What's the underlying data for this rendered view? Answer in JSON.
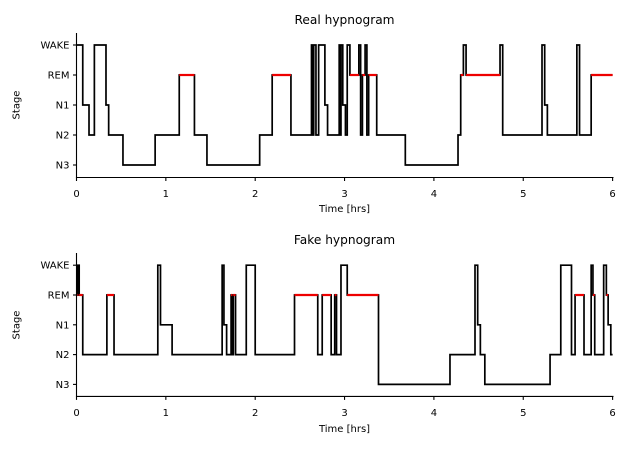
{
  "colors": {
    "line": "#000000",
    "rem_highlight": "#ee0000",
    "text": "#000000",
    "background": "#ffffff"
  },
  "chart_data": [
    {
      "type": "line",
      "subtype": "hypnogram-step",
      "title": "Real hypnogram",
      "xlabel": "Time [hrs]",
      "ylabel": "Stage",
      "stages": [
        "WAKE",
        "REM",
        "N1",
        "N2",
        "N3"
      ],
      "x_ticks": [
        "0",
        "1",
        "2",
        "3",
        "4",
        "5",
        "6"
      ],
      "xlim": [
        0,
        6
      ],
      "grid": false,
      "legend": "none",
      "rem_segments_highlighted_red": true,
      "segments": [
        [
          0.0,
          0.07,
          "WAKE"
        ],
        [
          0.07,
          0.14,
          "N1"
        ],
        [
          0.14,
          0.2,
          "N2"
        ],
        [
          0.2,
          0.33,
          "WAKE"
        ],
        [
          0.33,
          0.36,
          "N1"
        ],
        [
          0.36,
          0.52,
          "N2"
        ],
        [
          0.52,
          0.88,
          "N3"
        ],
        [
          0.88,
          1.15,
          "N2"
        ],
        [
          1.15,
          1.32,
          "REM"
        ],
        [
          1.32,
          1.46,
          "N2"
        ],
        [
          1.46,
          2.05,
          "N3"
        ],
        [
          2.05,
          2.19,
          "N2"
        ],
        [
          2.19,
          2.4,
          "REM"
        ],
        [
          2.4,
          2.63,
          "N2"
        ],
        [
          2.63,
          2.645,
          "WAKE"
        ],
        [
          2.645,
          2.655,
          "N2"
        ],
        [
          2.655,
          2.68,
          "WAKE"
        ],
        [
          2.68,
          2.71,
          "N2"
        ],
        [
          2.71,
          2.78,
          "WAKE"
        ],
        [
          2.78,
          2.81,
          "N1"
        ],
        [
          2.81,
          2.94,
          "N2"
        ],
        [
          2.94,
          2.95,
          "WAKE"
        ],
        [
          2.95,
          2.96,
          "N2"
        ],
        [
          2.96,
          2.98,
          "WAKE"
        ],
        [
          2.98,
          3.01,
          "N1"
        ],
        [
          3.01,
          3.03,
          "N2"
        ],
        [
          3.03,
          3.06,
          "WAKE"
        ],
        [
          3.06,
          3.16,
          "REM"
        ],
        [
          3.16,
          3.18,
          "WAKE"
        ],
        [
          3.18,
          3.2,
          "N2"
        ],
        [
          3.2,
          3.23,
          "REM"
        ],
        [
          3.23,
          3.25,
          "WAKE"
        ],
        [
          3.25,
          3.27,
          "N2"
        ],
        [
          3.27,
          3.36,
          "REM"
        ],
        [
          3.36,
          3.68,
          "N2"
        ],
        [
          3.68,
          4.27,
          "N3"
        ],
        [
          4.27,
          4.3,
          "N2"
        ],
        [
          4.3,
          4.33,
          "REM"
        ],
        [
          4.33,
          4.36,
          "WAKE"
        ],
        [
          4.36,
          4.74,
          "REM"
        ],
        [
          4.74,
          4.77,
          "WAKE"
        ],
        [
          4.77,
          5.21,
          "N2"
        ],
        [
          5.21,
          5.24,
          "WAKE"
        ],
        [
          5.24,
          5.27,
          "N1"
        ],
        [
          5.27,
          5.6,
          "N2"
        ],
        [
          5.6,
          5.63,
          "WAKE"
        ],
        [
          5.63,
          5.76,
          "N2"
        ],
        [
          5.76,
          6.0,
          "REM"
        ]
      ]
    },
    {
      "type": "line",
      "subtype": "hypnogram-step",
      "title": "Fake hypnogram",
      "xlabel": "Time [hrs]",
      "ylabel": "Stage",
      "stages": [
        "WAKE",
        "REM",
        "N1",
        "N2",
        "N3"
      ],
      "x_ticks": [
        "0",
        "1",
        "2",
        "3",
        "4",
        "5",
        "6"
      ],
      "xlim": [
        0,
        6
      ],
      "grid": false,
      "legend": "none",
      "rem_segments_highlighted_red": true,
      "segments": [
        [
          0.0,
          0.01,
          "WAKE"
        ],
        [
          0.01,
          0.02,
          "REM"
        ],
        [
          0.02,
          0.03,
          "WAKE"
        ],
        [
          0.03,
          0.07,
          "REM"
        ],
        [
          0.07,
          0.34,
          "N2"
        ],
        [
          0.34,
          0.42,
          "REM"
        ],
        [
          0.42,
          0.91,
          "N2"
        ],
        [
          0.91,
          0.94,
          "WAKE"
        ],
        [
          0.94,
          1.07,
          "N1"
        ],
        [
          1.07,
          1.63,
          "N2"
        ],
        [
          1.63,
          1.65,
          "WAKE"
        ],
        [
          1.65,
          1.68,
          "N1"
        ],
        [
          1.68,
          1.73,
          "N2"
        ],
        [
          1.73,
          1.745,
          "REM"
        ],
        [
          1.745,
          1.755,
          "N2"
        ],
        [
          1.755,
          1.78,
          "REM"
        ],
        [
          1.78,
          1.9,
          "N2"
        ],
        [
          1.9,
          2.0,
          "WAKE"
        ],
        [
          2.0,
          2.44,
          "N2"
        ],
        [
          2.44,
          2.7,
          "REM"
        ],
        [
          2.7,
          2.75,
          "N2"
        ],
        [
          2.75,
          2.85,
          "REM"
        ],
        [
          2.85,
          2.89,
          "N2"
        ],
        [
          2.89,
          2.91,
          "REM"
        ],
        [
          2.91,
          2.96,
          "N2"
        ],
        [
          2.96,
          3.03,
          "WAKE"
        ],
        [
          3.03,
          3.38,
          "REM"
        ],
        [
          3.38,
          4.18,
          "N3"
        ],
        [
          4.18,
          4.46,
          "N2"
        ],
        [
          4.46,
          4.49,
          "WAKE"
        ],
        [
          4.49,
          4.52,
          "N1"
        ],
        [
          4.52,
          4.57,
          "N2"
        ],
        [
          4.57,
          5.3,
          "N3"
        ],
        [
          5.3,
          5.42,
          "N2"
        ],
        [
          5.42,
          5.54,
          "WAKE"
        ],
        [
          5.54,
          5.58,
          "N2"
        ],
        [
          5.58,
          5.68,
          "REM"
        ],
        [
          5.68,
          5.76,
          "N2"
        ],
        [
          5.76,
          5.78,
          "WAKE"
        ],
        [
          5.78,
          5.8,
          "REM"
        ],
        [
          5.8,
          5.9,
          "N2"
        ],
        [
          5.9,
          5.93,
          "WAKE"
        ],
        [
          5.93,
          5.95,
          "REM"
        ],
        [
          5.95,
          5.98,
          "N1"
        ],
        [
          5.98,
          6.0,
          "N2"
        ]
      ]
    }
  ]
}
